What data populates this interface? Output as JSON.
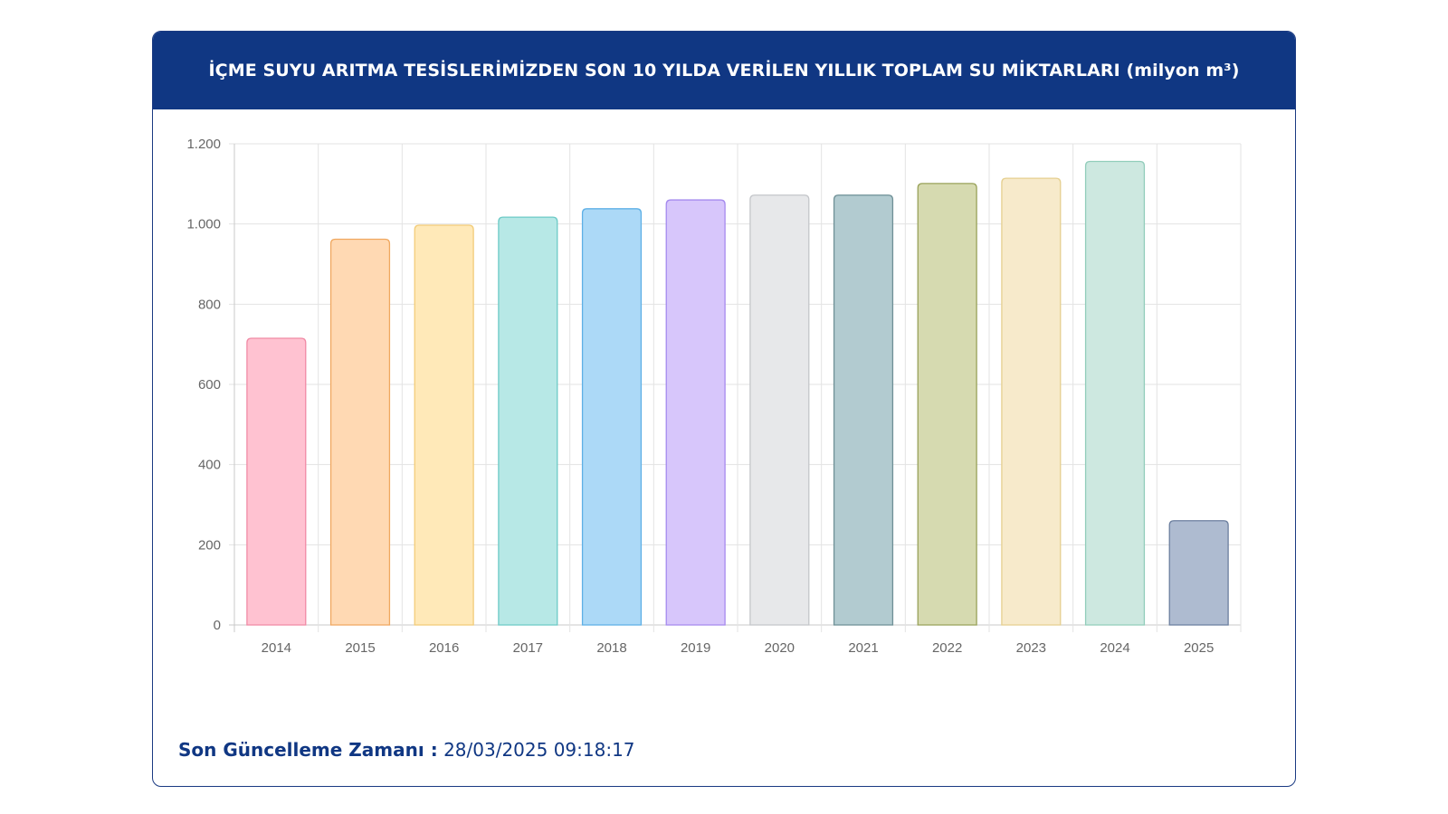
{
  "header": {
    "title": "İÇME SUYU ARITMA TESİSLERİMİZDEN SON 10 YILDA VERİLEN YILLIK TOPLAM SU MİKTARLARI (milyon m³)"
  },
  "footer": {
    "label": "Son Güncelleme Zamanı :",
    "value": "28/03/2025 09:18:17"
  },
  "chart_data": {
    "type": "bar",
    "categories": [
      "2014",
      "2015",
      "2016",
      "2017",
      "2018",
      "2019",
      "2020",
      "2021",
      "2022",
      "2023",
      "2024",
      "2025"
    ],
    "values": [
      715,
      962,
      997,
      1017,
      1038,
      1060,
      1072,
      1072,
      1101,
      1114,
      1156,
      260
    ],
    "ylim": [
      0,
      1200
    ],
    "yticks": [
      0,
      200,
      400,
      600,
      800,
      1000,
      1200
    ],
    "ytick_labels": [
      "0",
      "200",
      "400",
      "600",
      "800",
      "1.000",
      "1.200"
    ],
    "grid": true,
    "legend": "none",
    "colors": [
      {
        "fill": "#ffc2d1",
        "stroke": "#f08aa5"
      },
      {
        "fill": "#ffd9b3",
        "stroke": "#f0a860"
      },
      {
        "fill": "#ffe9b8",
        "stroke": "#f2cc78"
      },
      {
        "fill": "#b7e8e6",
        "stroke": "#6ccac6"
      },
      {
        "fill": "#acd9f7",
        "stroke": "#5eb0e6"
      },
      {
        "fill": "#d7c6fb",
        "stroke": "#a58aee"
      },
      {
        "fill": "#e7e8ea",
        "stroke": "#c4c6ca"
      },
      {
        "fill": "#b2cbd0",
        "stroke": "#6f9096"
      },
      {
        "fill": "#d6dab0",
        "stroke": "#99a25a"
      },
      {
        "fill": "#f7eacb",
        "stroke": "#e5cf8f"
      },
      {
        "fill": "#cde8e0",
        "stroke": "#92cdbb"
      },
      {
        "fill": "#aebbd0",
        "stroke": "#6c7f9f"
      }
    ]
  }
}
